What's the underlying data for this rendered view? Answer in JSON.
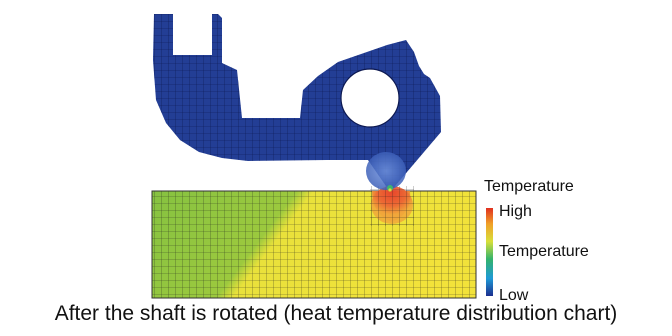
{
  "legend": {
    "title": "Temperature",
    "high": "High",
    "middle": "Temperature",
    "low": "Low",
    "colors": [
      "#1c2f8f",
      "#1f9ad6",
      "#34b36b",
      "#d8df3a",
      "#f0a028",
      "#e0301f"
    ]
  },
  "colors": {
    "part": "#233e95",
    "plate_left": "#8ec63f",
    "plate_right": "#f2e33b",
    "hot_zone": "#e8643a",
    "contact_blue": "#4d74c8",
    "mesh": "#1a1a1a"
  },
  "caption": "After the shaft is rotated (heat temperature distribution chart)"
}
